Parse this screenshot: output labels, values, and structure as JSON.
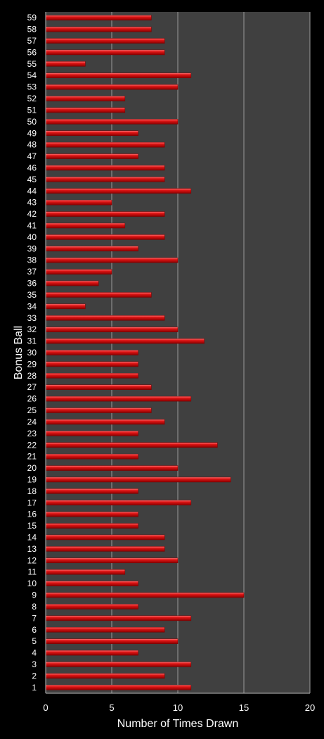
{
  "chart_data": {
    "type": "bar",
    "orientation": "horizontal",
    "xlabel": "Number of Times Drawn",
    "ylabel": "Bonus Ball",
    "xlim": [
      0,
      20
    ],
    "xticks": [
      0,
      5,
      10,
      15,
      20
    ],
    "grid": true,
    "legend": "none",
    "colors": {
      "background": "#000000",
      "plot_area": "#404040",
      "bar": "#e01515",
      "bar_highlight": "#ff6a6a",
      "bar_shadow": "#8a0000",
      "gridline": "#9a9a9a",
      "text": "#ffffff"
    },
    "categories": [
      "1",
      "2",
      "3",
      "4",
      "5",
      "6",
      "7",
      "8",
      "9",
      "10",
      "11",
      "12",
      "13",
      "14",
      "15",
      "16",
      "17",
      "18",
      "19",
      "20",
      "21",
      "22",
      "23",
      "24",
      "25",
      "26",
      "27",
      "28",
      "29",
      "30",
      "31",
      "32",
      "33",
      "34",
      "35",
      "36",
      "37",
      "38",
      "39",
      "40",
      "41",
      "42",
      "43",
      "44",
      "45",
      "46",
      "47",
      "48",
      "49",
      "50",
      "51",
      "52",
      "53",
      "54",
      "55",
      "56",
      "57",
      "58",
      "59"
    ],
    "values": [
      11,
      9,
      11,
      7,
      10,
      9,
      11,
      7,
      15,
      7,
      6,
      10,
      9,
      9,
      7,
      7,
      11,
      7,
      14,
      10,
      7,
      13,
      7,
      9,
      8,
      11,
      8,
      7,
      7,
      7,
      12,
      10,
      9,
      3,
      8,
      4,
      5,
      10,
      7,
      9,
      6,
      9,
      5,
      11,
      9,
      9,
      7,
      9,
      7,
      10,
      6,
      6,
      10,
      11,
      3,
      9,
      9,
      8,
      8
    ]
  }
}
